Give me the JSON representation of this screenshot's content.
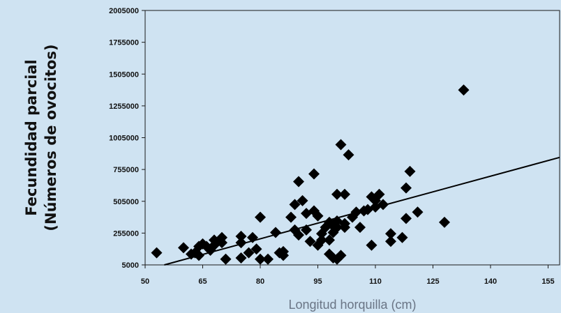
{
  "chart_data": {
    "type": "scatter",
    "title": "",
    "xlabel": "Longitud horquilla (cm)",
    "ylabel_lines": [
      "Fecundidad parcial",
      "(Números de ovocitos)"
    ],
    "xlim": [
      50,
      158
    ],
    "ylim": [
      5000,
      2005000
    ],
    "x_ticks": [
      50,
      65,
      80,
      95,
      110,
      125,
      140,
      155
    ],
    "y_ticks": [
      5000,
      255000,
      505000,
      755000,
      1005000,
      1255000,
      1505000,
      1755000,
      2005000
    ],
    "grid": false,
    "trendline": {
      "type": "linear",
      "x": [
        55,
        158
      ],
      "y": [
        5000,
        850000
      ]
    },
    "marker": "diamond",
    "marker_color": "#000000",
    "points": [
      [
        53,
        100000
      ],
      [
        60,
        140000
      ],
      [
        62,
        90000
      ],
      [
        63,
        100000
      ],
      [
        64,
        80000
      ],
      [
        64,
        150000
      ],
      [
        65,
        170000
      ],
      [
        66,
        150000
      ],
      [
        67,
        120000
      ],
      [
        68,
        160000
      ],
      [
        68,
        200000
      ],
      [
        70,
        180000
      ],
      [
        70,
        220000
      ],
      [
        71,
        50000
      ],
      [
        75,
        60000
      ],
      [
        75,
        180000
      ],
      [
        75,
        230000
      ],
      [
        77,
        100000
      ],
      [
        78,
        220000
      ],
      [
        79,
        130000
      ],
      [
        80,
        50000
      ],
      [
        80,
        380000
      ],
      [
        82,
        50000
      ],
      [
        84,
        260000
      ],
      [
        85,
        100000
      ],
      [
        86,
        80000
      ],
      [
        86,
        110000
      ],
      [
        88,
        380000
      ],
      [
        89,
        280000
      ],
      [
        89,
        480000
      ],
      [
        90,
        240000
      ],
      [
        90,
        660000
      ],
      [
        91,
        510000
      ],
      [
        92,
        280000
      ],
      [
        92,
        410000
      ],
      [
        93,
        190000
      ],
      [
        94,
        430000
      ],
      [
        94,
        720000
      ],
      [
        95,
        390000
      ],
      [
        95,
        160000
      ],
      [
        96,
        200000
      ],
      [
        96,
        250000
      ],
      [
        97,
        300000
      ],
      [
        98,
        340000
      ],
      [
        98,
        200000
      ],
      [
        98,
        90000
      ],
      [
        99,
        310000
      ],
      [
        99,
        260000
      ],
      [
        99,
        60000
      ],
      [
        100,
        50000
      ],
      [
        100,
        350000
      ],
      [
        100,
        560000
      ],
      [
        100,
        300000
      ],
      [
        101,
        80000
      ],
      [
        101,
        950000
      ],
      [
        102,
        330000
      ],
      [
        102,
        560000
      ],
      [
        102,
        300000
      ],
      [
        103,
        870000
      ],
      [
        104,
        380000
      ],
      [
        105,
        420000
      ],
      [
        106,
        300000
      ],
      [
        107,
        430000
      ],
      [
        108,
        440000
      ],
      [
        109,
        540000
      ],
      [
        109,
        160000
      ],
      [
        110,
        510000
      ],
      [
        110,
        460000
      ],
      [
        111,
        560000
      ],
      [
        112,
        480000
      ],
      [
        114,
        190000
      ],
      [
        114,
        250000
      ],
      [
        117,
        220000
      ],
      [
        118,
        370000
      ],
      [
        118,
        610000
      ],
      [
        119,
        740000
      ],
      [
        121,
        420000
      ],
      [
        128,
        340000
      ],
      [
        133,
        1380000
      ]
    ]
  }
}
